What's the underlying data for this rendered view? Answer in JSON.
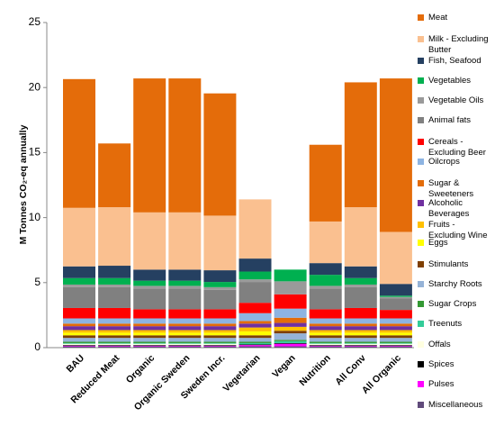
{
  "chart_data": {
    "type": "bar",
    "stacked": true,
    "y_label": "M Tonnes CO₂-eq annually",
    "categories": [
      "BAU",
      "Reduced Meat",
      "Organic",
      "Organic Sweden",
      "Sweden Incr.",
      "Vegetarian",
      "Vegan",
      "Nutrition",
      "All Conv",
      "All Organic"
    ],
    "ylim": [
      0,
      25
    ],
    "yticks": [
      0,
      5,
      10,
      15,
      20,
      25
    ],
    "series": [
      {
        "name": "Miscellaneous",
        "color": "#604a7b",
        "values": [
          0.1,
          0.1,
          0.1,
          0.1,
          0.1,
          0.1,
          0.1,
          0.1,
          0.1,
          0.1
        ]
      },
      {
        "name": "Pulses",
        "color": "#ff00ff",
        "values": [
          0.05,
          0.05,
          0.05,
          0.05,
          0.05,
          0.1,
          0.2,
          0.05,
          0.05,
          0.05
        ]
      },
      {
        "name": "Spices",
        "color": "#000000",
        "values": [
          0.05,
          0.05,
          0.05,
          0.05,
          0.05,
          0.05,
          0.05,
          0.05,
          0.05,
          0.05
        ]
      },
      {
        "name": "Offals",
        "color": "#ffffe0",
        "values": [
          0.1,
          0.1,
          0.1,
          0.1,
          0.1,
          0,
          0,
          0.1,
          0.1,
          0.1
        ]
      },
      {
        "name": "Treenuts",
        "color": "#33cc99",
        "values": [
          0.05,
          0.05,
          0.05,
          0.05,
          0.05,
          0.1,
          0.15,
          0.05,
          0.05,
          0.05
        ]
      },
      {
        "name": "Sugar Crops",
        "color": "#339933",
        "values": [
          0.1,
          0.1,
          0.1,
          0.1,
          0.1,
          0.1,
          0.1,
          0.1,
          0.1,
          0.1
        ]
      },
      {
        "name": "Starchy Roots",
        "color": "#95b3d7",
        "values": [
          0.3,
          0.3,
          0.3,
          0.3,
          0.3,
          0.3,
          0.5,
          0.3,
          0.3,
          0.3
        ]
      },
      {
        "name": "Stimulants",
        "color": "#7f3f00",
        "values": [
          0.2,
          0.2,
          0.2,
          0.2,
          0.2,
          0.2,
          0.2,
          0.2,
          0.2,
          0.2
        ]
      },
      {
        "name": "Eggs",
        "color": "#ffff00",
        "values": [
          0.2,
          0.2,
          0.2,
          0.2,
          0.2,
          0.3,
          0,
          0.2,
          0.2,
          0.2
        ]
      },
      {
        "name": "Fruits - Excluding Wine",
        "color": "#ffc000",
        "values": [
          0.2,
          0.2,
          0.2,
          0.2,
          0.2,
          0.3,
          0.3,
          0.2,
          0.2,
          0.2
        ]
      },
      {
        "name": "Alcoholic Beverages",
        "color": "#7030a0",
        "values": [
          0.3,
          0.3,
          0.3,
          0.3,
          0.3,
          0.3,
          0.3,
          0.3,
          0.3,
          0.3
        ]
      },
      {
        "name": "Sugar & Sweeteners",
        "color": "#e36c09",
        "values": [
          0.2,
          0.2,
          0.2,
          0.2,
          0.2,
          0.2,
          0.4,
          0.2,
          0.2,
          0.2
        ]
      },
      {
        "name": "Oilcrops",
        "color": "#8db4e2",
        "values": [
          0.4,
          0.4,
          0.4,
          0.4,
          0.4,
          0.6,
          0.7,
          0.4,
          0.4,
          0.4
        ]
      },
      {
        "name": "Cereals - Excluding Beer",
        "color": "#ff0000",
        "values": [
          0.8,
          0.8,
          0.7,
          0.7,
          0.7,
          0.8,
          1.1,
          0.7,
          0.8,
          0.65
        ]
      },
      {
        "name": "Animal fats",
        "color": "#808080",
        "values": [
          1.6,
          1.6,
          1.6,
          1.6,
          1.5,
          1.6,
          0,
          1.6,
          1.6,
          0.9
        ]
      },
      {
        "name": "Vegetable Oils",
        "color": "#9a9a9a",
        "values": [
          0.2,
          0.2,
          0.2,
          0.2,
          0.2,
          0.2,
          1.0,
          0.2,
          0.2,
          0.1
        ]
      },
      {
        "name": "Vegetables",
        "color": "#00b050",
        "values": [
          0.5,
          0.5,
          0.4,
          0.4,
          0.4,
          0.6,
          0.9,
          0.85,
          0.5,
          0.1
        ]
      },
      {
        "name": "Fish, Seafood",
        "color": "#254061",
        "values": [
          0.9,
          0.95,
          0.85,
          0.85,
          0.9,
          1.0,
          0,
          0.9,
          0.9,
          0.9
        ]
      },
      {
        "name": "Milk - Excluding Butter",
        "color": "#fac090",
        "values": [
          4.5,
          4.5,
          4.4,
          4.4,
          4.2,
          4.55,
          0,
          3.2,
          4.55,
          4.0
        ]
      },
      {
        "name": "Meat",
        "color": "#e46c0a",
        "values": [
          9.9,
          4.9,
          10.3,
          10.3,
          9.4,
          0,
          0,
          5.9,
          9.6,
          11.8
        ]
      }
    ]
  }
}
